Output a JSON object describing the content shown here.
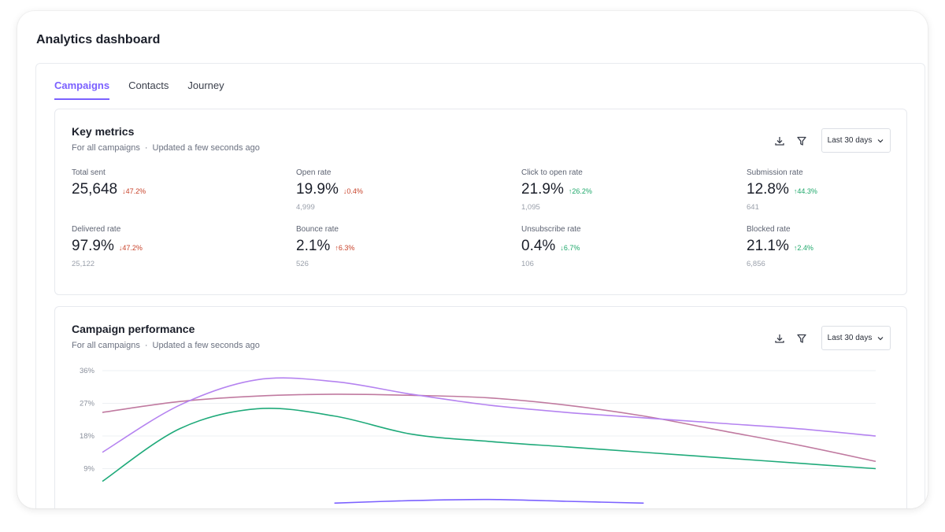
{
  "page_title": "Analytics dashboard",
  "tabs": [
    {
      "label": "Campaigns",
      "active": true
    },
    {
      "label": "Contacts",
      "active": false
    },
    {
      "label": "Journey",
      "active": false
    }
  ],
  "key_metrics": {
    "title": "Key metrics",
    "subtitle_left": "For all campaigns",
    "subtitle_right": "Updated a few seconds ago",
    "range_label": "Last 30 days",
    "metrics": [
      {
        "label": "Total sent",
        "value": "25,648",
        "delta": "47.2%",
        "direction": "down",
        "count": ""
      },
      {
        "label": "Open rate",
        "value": "19.9%",
        "delta": "0.4%",
        "direction": "down",
        "count": "4,999"
      },
      {
        "label": "Click to open rate",
        "value": "21.9%",
        "delta": "26.2%",
        "direction": "up",
        "count": "1,095"
      },
      {
        "label": "Submission rate",
        "value": "12.8%",
        "delta": "44.3%",
        "direction": "up",
        "count": "641"
      },
      {
        "label": "Delivered rate",
        "value": "97.9%",
        "delta": "47.2%",
        "direction": "down",
        "count": "25,122"
      },
      {
        "label": "Bounce rate",
        "value": "2.1%",
        "delta": "6.3%",
        "direction": "up-red",
        "count": "526"
      },
      {
        "label": "Unsubscribe rate",
        "value": "0.4%",
        "delta": "6.7%",
        "direction": "down-green",
        "count": "106"
      },
      {
        "label": "Blocked rate",
        "value": "21.1%",
        "delta": "2.4%",
        "direction": "up",
        "count": "6,856"
      }
    ]
  },
  "campaign_performance": {
    "title": "Campaign performance",
    "subtitle_left": "For all campaigns",
    "subtitle_right": "Updated a few seconds ago",
    "range_label": "Last 30 days"
  },
  "colors": {
    "accent": "#7b61ff",
    "down": "#c8432b",
    "up": "#1fa86b"
  },
  "chart_data": {
    "type": "line",
    "title": "",
    "xlabel": "",
    "ylabel": "",
    "yticks": [
      "36%",
      "27%",
      "18%",
      "9%"
    ],
    "ytick_values": [
      36,
      27,
      18,
      9
    ],
    "ylim": [
      0,
      36
    ],
    "x": [
      0,
      1,
      2,
      3,
      4,
      5,
      6,
      7,
      8,
      9,
      10
    ],
    "series": [
      {
        "color": "#c07aa0",
        "values": [
          24.5,
          27.5,
          29.0,
          29.5,
          29.2,
          28.5,
          26.5,
          23.5,
          19.5,
          15.5,
          11.0
        ]
      },
      {
        "color": "#b583f0",
        "values": [
          13.5,
          26.5,
          33.5,
          33.0,
          29.5,
          26.5,
          24.5,
          23.0,
          21.5,
          20.0,
          18.0
        ]
      },
      {
        "color": "#1faa7a",
        "values": [
          5.5,
          20.0,
          25.5,
          23.5,
          18.5,
          16.5,
          15.0,
          13.5,
          12.0,
          10.5,
          9.0
        ]
      },
      {
        "color": "#7b61ff",
        "values": [
          null,
          null,
          null,
          -0.5,
          0.2,
          0.5,
          0.0,
          -0.5,
          null,
          null,
          null
        ]
      }
    ]
  }
}
